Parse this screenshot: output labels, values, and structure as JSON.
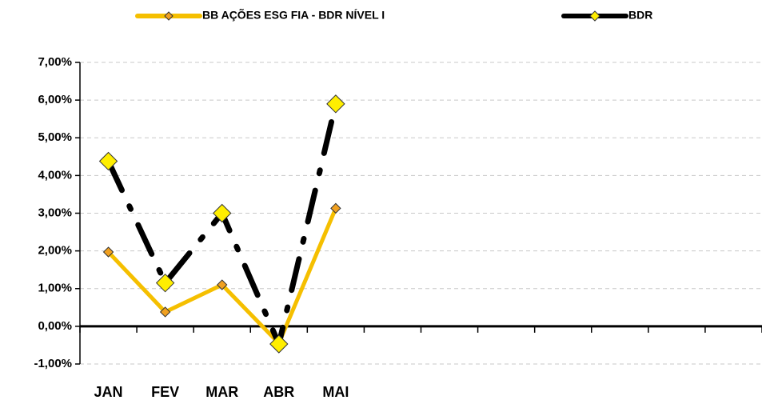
{
  "chart_data": {
    "type": "line",
    "categories": [
      "JAN",
      "FEV",
      "MAR",
      "ABR",
      "MAI",
      null,
      null,
      null,
      null,
      null,
      null,
      null
    ],
    "series": [
      {
        "name": "BB AÇÕES ESG FIA - BDR NÍVEL I",
        "color": "#f5bf00",
        "marker_color": "#f0a020",
        "line_style": "solid",
        "values": [
          1.97,
          0.38,
          1.1,
          -0.45,
          3.13,
          null,
          null,
          null,
          null,
          null,
          null,
          null
        ]
      },
      {
        "name": "BDR",
        "color": "#000000",
        "marker_color": "#ffee00",
        "line_style": "dashdot",
        "values": [
          4.38,
          1.15,
          3.0,
          -0.47,
          5.9,
          null,
          null,
          null,
          null,
          null,
          null,
          null
        ]
      }
    ],
    "ylim": [
      -1,
      7
    ],
    "yticks": [
      {
        "value": -1,
        "label": "-1,00%"
      },
      {
        "value": 0,
        "label": "0,00%"
      },
      {
        "value": 1,
        "label": "1,00%"
      },
      {
        "value": 2,
        "label": "2,00%"
      },
      {
        "value": 3,
        "label": "3,00%"
      },
      {
        "value": 4,
        "label": "4,00%"
      },
      {
        "value": 5,
        "label": "5,00%"
      },
      {
        "value": 6,
        "label": "6,00%"
      },
      {
        "value": 7,
        "label": "7,00%"
      }
    ],
    "grid": true,
    "legend": "top"
  }
}
